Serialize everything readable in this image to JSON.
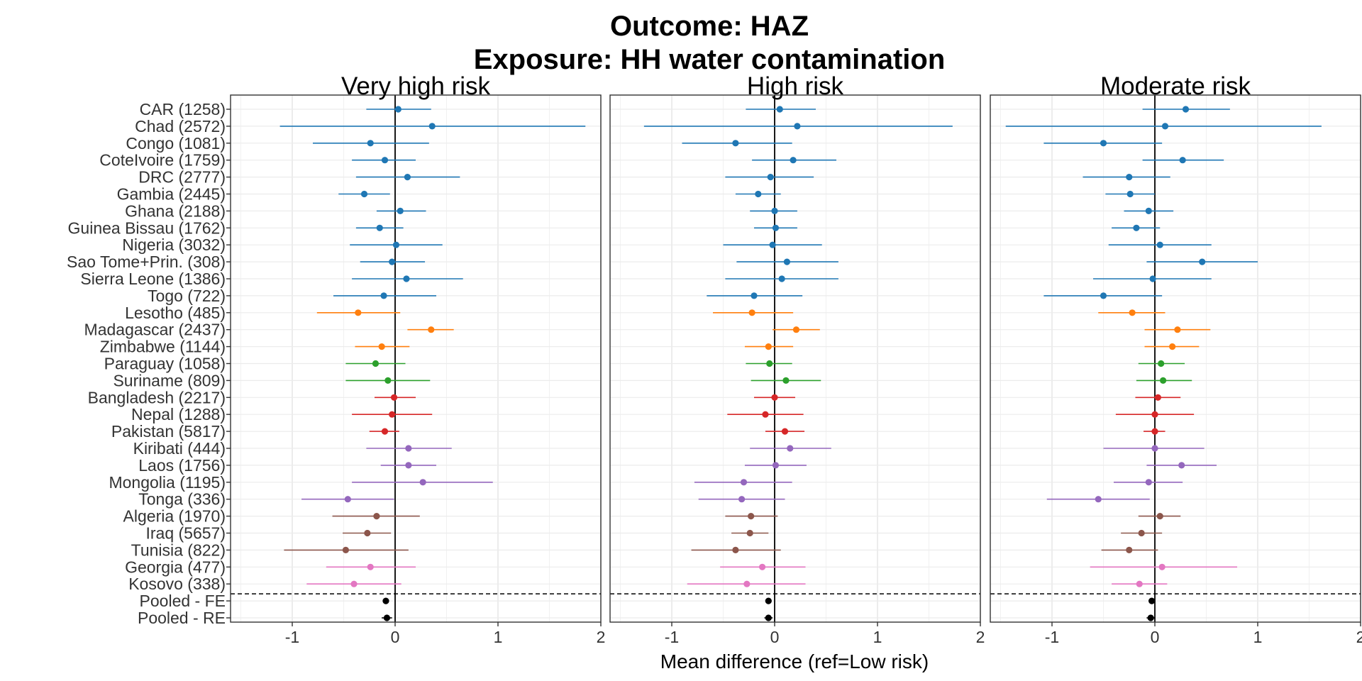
{
  "chart_data": {
    "type": "forest",
    "title_line1": "Outcome: HAZ",
    "title_line2": "Exposure: HH water contamination",
    "xlabel": "Mean difference (ref=Low risk)",
    "x_ticks": [
      -1,
      0,
      1,
      2
    ],
    "xlim": [
      -1.6,
      2.0
    ],
    "reference_line": 0,
    "grid": true,
    "facets": [
      "Very high risk",
      "High risk",
      "Moderate risk"
    ],
    "group_colors": {
      "Central/West Africa": "#1f77b4",
      "Southern/East Africa": "#ff7f0e",
      "Latin America": "#2ca02c",
      "South Asia": "#d62728",
      "East Asia/Pacific": "#9467bd",
      "Middle East/North Africa": "#8c564b",
      "Europe": "#e377c2",
      "Pooled": "#000000"
    },
    "rows": [
      {
        "label": "CAR (1258)",
        "group": "Central/West Africa",
        "est": [
          [
            0.03,
            -0.28,
            0.35
          ],
          [
            0.05,
            -0.28,
            0.4
          ],
          [
            0.3,
            -0.12,
            0.73
          ]
        ]
      },
      {
        "label": "Chad (2572)",
        "group": "Central/West Africa",
        "est": [
          [
            0.36,
            -1.12,
            1.85
          ],
          [
            0.22,
            -1.27,
            1.73
          ],
          [
            0.1,
            -1.45,
            1.62
          ]
        ]
      },
      {
        "label": "Congo (1081)",
        "group": "Central/West Africa",
        "est": [
          [
            -0.24,
            -0.8,
            0.33
          ],
          [
            -0.38,
            -0.9,
            0.17
          ],
          [
            -0.5,
            -1.08,
            0.07
          ]
        ]
      },
      {
        "label": "CoteIvoire (1759)",
        "group": "Central/West Africa",
        "est": [
          [
            -0.1,
            -0.42,
            0.2
          ],
          [
            0.18,
            -0.22,
            0.6
          ],
          [
            0.27,
            -0.12,
            0.67
          ]
        ]
      },
      {
        "label": "DRC (2777)",
        "group": "Central/West Africa",
        "est": [
          [
            0.12,
            -0.38,
            0.63
          ],
          [
            -0.04,
            -0.48,
            0.38
          ],
          [
            -0.25,
            -0.7,
            0.15
          ]
        ]
      },
      {
        "label": "Gambia (2445)",
        "group": "Central/West Africa",
        "est": [
          [
            -0.3,
            -0.55,
            -0.05
          ],
          [
            -0.16,
            -0.38,
            0.06
          ],
          [
            -0.24,
            -0.48,
            0.0
          ]
        ]
      },
      {
        "label": "Ghana (2188)",
        "group": "Central/West Africa",
        "est": [
          [
            0.05,
            -0.18,
            0.3
          ],
          [
            0.0,
            -0.24,
            0.22
          ],
          [
            -0.06,
            -0.3,
            0.18
          ]
        ]
      },
      {
        "label": "Guinea Bissau (1762)",
        "group": "Central/West Africa",
        "est": [
          [
            -0.15,
            -0.38,
            0.08
          ],
          [
            0.01,
            -0.2,
            0.22
          ],
          [
            -0.18,
            -0.42,
            0.05
          ]
        ]
      },
      {
        "label": "Nigeria (3032)",
        "group": "Central/West Africa",
        "est": [
          [
            0.01,
            -0.44,
            0.46
          ],
          [
            -0.02,
            -0.5,
            0.46
          ],
          [
            0.05,
            -0.45,
            0.55
          ]
        ]
      },
      {
        "label": "Sao Tome+Prin. (308)",
        "group": "Central/West Africa",
        "est": [
          [
            -0.03,
            -0.34,
            0.29
          ],
          [
            0.12,
            -0.37,
            0.62
          ],
          [
            0.46,
            -0.08,
            1.0
          ]
        ]
      },
      {
        "label": "Sierra Leone (1386)",
        "group": "Central/West Africa",
        "est": [
          [
            0.11,
            -0.42,
            0.66
          ],
          [
            0.07,
            -0.48,
            0.62
          ],
          [
            -0.02,
            -0.6,
            0.55
          ]
        ]
      },
      {
        "label": "Togo (722)",
        "group": "Central/West Africa",
        "est": [
          [
            -0.11,
            -0.6,
            0.4
          ],
          [
            -0.2,
            -0.66,
            0.27
          ],
          [
            -0.5,
            -1.08,
            0.07
          ]
        ]
      },
      {
        "label": "Lesotho (485)",
        "group": "Southern/East Africa",
        "est": [
          [
            -0.36,
            -0.76,
            0.05
          ],
          [
            -0.22,
            -0.6,
            0.18
          ],
          [
            -0.22,
            -0.55,
            0.1
          ]
        ]
      },
      {
        "label": "Madagascar (2437)",
        "group": "Southern/East Africa",
        "est": [
          [
            0.35,
            0.12,
            0.57
          ],
          [
            0.21,
            -0.02,
            0.44
          ],
          [
            0.22,
            -0.1,
            0.54
          ]
        ]
      },
      {
        "label": "Zimbabwe (1144)",
        "group": "Southern/East Africa",
        "est": [
          [
            -0.13,
            -0.39,
            0.14
          ],
          [
            -0.06,
            -0.29,
            0.18
          ],
          [
            0.17,
            -0.1,
            0.43
          ]
        ]
      },
      {
        "label": "Paraguay (1058)",
        "group": "Latin America",
        "est": [
          [
            -0.19,
            -0.48,
            0.1
          ],
          [
            -0.05,
            -0.28,
            0.17
          ],
          [
            0.06,
            -0.16,
            0.29
          ]
        ]
      },
      {
        "label": "Suriname (809)",
        "group": "Latin America",
        "est": [
          [
            -0.07,
            -0.48,
            0.34
          ],
          [
            0.11,
            -0.23,
            0.45
          ],
          [
            0.08,
            -0.18,
            0.36
          ]
        ]
      },
      {
        "label": "Bangladesh (2217)",
        "group": "South Asia",
        "est": [
          [
            -0.01,
            -0.2,
            0.2
          ],
          [
            0.0,
            -0.2,
            0.2
          ],
          [
            0.03,
            -0.19,
            0.25
          ]
        ]
      },
      {
        "label": "Nepal (1288)",
        "group": "South Asia",
        "est": [
          [
            -0.03,
            -0.42,
            0.36
          ],
          [
            -0.09,
            -0.46,
            0.28
          ],
          [
            0.0,
            -0.38,
            0.38
          ]
        ]
      },
      {
        "label": "Pakistan (5817)",
        "group": "South Asia",
        "est": [
          [
            -0.1,
            -0.25,
            0.04
          ],
          [
            0.1,
            -0.09,
            0.29
          ],
          [
            0.0,
            -0.11,
            0.1
          ]
        ]
      },
      {
        "label": "Kiribati (444)",
        "group": "East Asia/Pacific",
        "est": [
          [
            0.13,
            -0.28,
            0.55
          ],
          [
            0.15,
            -0.24,
            0.55
          ],
          [
            0.0,
            -0.5,
            0.48
          ]
        ]
      },
      {
        "label": "Laos (1756)",
        "group": "East Asia/Pacific",
        "est": [
          [
            0.13,
            -0.14,
            0.4
          ],
          [
            0.01,
            -0.29,
            0.31
          ],
          [
            0.26,
            -0.08,
            0.6
          ]
        ]
      },
      {
        "label": "Mongolia (1195)",
        "group": "East Asia/Pacific",
        "est": [
          [
            0.27,
            -0.42,
            0.95
          ],
          [
            -0.3,
            -0.78,
            0.17
          ],
          [
            -0.06,
            -0.4,
            0.27
          ]
        ]
      },
      {
        "label": "Tonga (336)",
        "group": "East Asia/Pacific",
        "est": [
          [
            -0.46,
            -0.91,
            -0.01
          ],
          [
            -0.32,
            -0.74,
            0.1
          ],
          [
            -0.55,
            -1.05,
            -0.05
          ]
        ]
      },
      {
        "label": "Algeria (1970)",
        "group": "Middle East/North Africa",
        "est": [
          [
            -0.18,
            -0.61,
            0.24
          ],
          [
            -0.23,
            -0.48,
            0.03
          ],
          [
            0.05,
            -0.16,
            0.25
          ]
        ]
      },
      {
        "label": "Iraq (5657)",
        "group": "Middle East/North Africa",
        "est": [
          [
            -0.27,
            -0.51,
            -0.04
          ],
          [
            -0.24,
            -0.42,
            -0.06
          ],
          [
            -0.13,
            -0.33,
            0.07
          ]
        ]
      },
      {
        "label": "Tunisia (822)",
        "group": "Middle East/North Africa",
        "est": [
          [
            -0.48,
            -1.08,
            0.13
          ],
          [
            -0.38,
            -0.81,
            0.06
          ],
          [
            -0.25,
            -0.52,
            0.03
          ]
        ]
      },
      {
        "label": "Georgia (477)",
        "group": "Europe",
        "est": [
          [
            -0.24,
            -0.67,
            0.2
          ],
          [
            -0.12,
            -0.53,
            0.3
          ],
          [
            0.07,
            -0.63,
            0.8
          ]
        ]
      },
      {
        "label": "Kosovo (338)",
        "group": "Europe",
        "est": [
          [
            -0.4,
            -0.86,
            0.06
          ],
          [
            -0.27,
            -0.85,
            0.3
          ],
          [
            -0.15,
            -0.42,
            0.12
          ]
        ]
      },
      {
        "label": "Pooled - FE",
        "group": "Pooled",
        "est": [
          [
            -0.09,
            -0.12,
            -0.06
          ],
          [
            -0.06,
            -0.09,
            -0.03
          ],
          [
            -0.03,
            -0.06,
            0.0
          ]
        ]
      },
      {
        "label": "Pooled - RE",
        "group": "Pooled",
        "est": [
          [
            -0.08,
            -0.13,
            -0.03
          ],
          [
            -0.06,
            -0.1,
            -0.02
          ],
          [
            -0.04,
            -0.08,
            0.0
          ]
        ]
      }
    ]
  }
}
